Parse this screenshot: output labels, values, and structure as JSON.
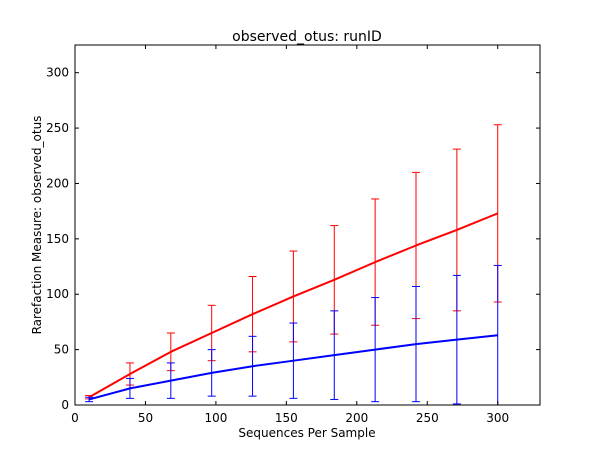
{
  "chart_data": {
    "type": "line",
    "title": "observed_otus: runID",
    "xlabel": "Sequences Per Sample",
    "ylabel": "Rarefaction Measure: observed_otus",
    "xlim": [
      0,
      330
    ],
    "ylim": [
      0,
      325
    ],
    "xticks": [
      0,
      50,
      100,
      150,
      200,
      250,
      300
    ],
    "yticks": [
      0,
      50,
      100,
      150,
      200,
      250,
      300
    ],
    "grid": false,
    "x": [
      10,
      39,
      68,
      97,
      126,
      155,
      184,
      213,
      242,
      271,
      300
    ],
    "series": [
      {
        "color": "#ff0000",
        "values": [
          7,
          28,
          48,
          65,
          82,
          98,
          113,
          129,
          144,
          158,
          173
        ],
        "error": [
          1.5,
          10,
          17,
          25,
          34,
          41,
          49,
          57,
          66,
          73,
          80
        ]
      },
      {
        "color": "#0000ff",
        "values": [
          5,
          15,
          22,
          29,
          35,
          40,
          45,
          50,
          55,
          59,
          63
        ],
        "error": [
          2,
          9,
          16,
          21,
          27,
          34,
          40,
          47,
          52,
          58,
          63
        ]
      }
    ]
  }
}
